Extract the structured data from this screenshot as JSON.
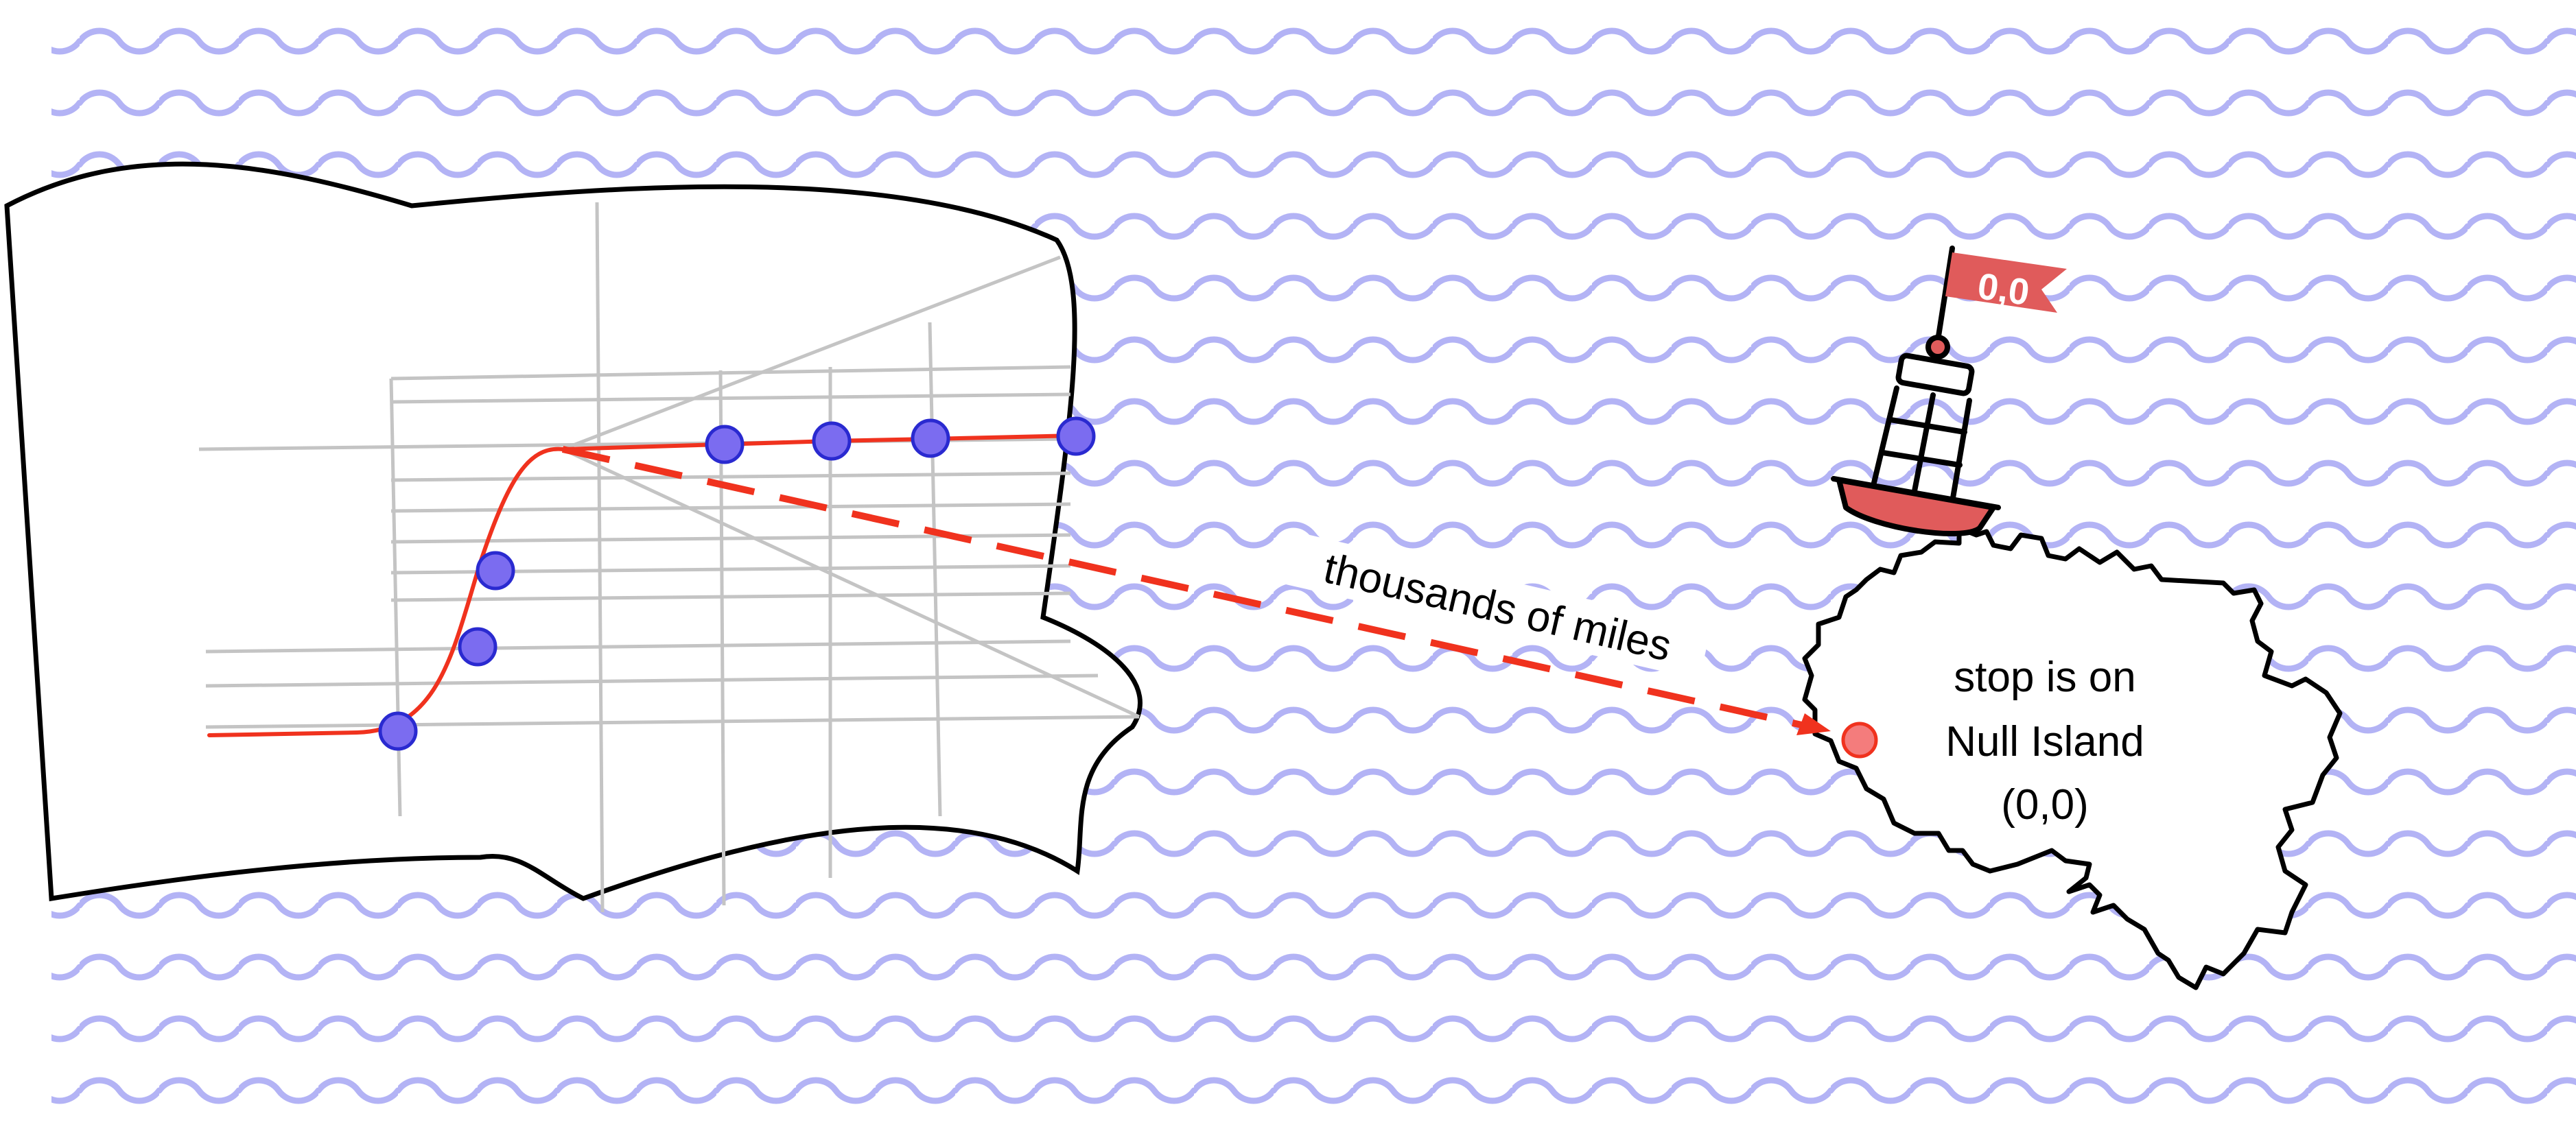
{
  "labels": {
    "distance": "thousands of miles",
    "stop_line_1": "stop is on",
    "stop_line_2": "Null Island",
    "stop_line_3": "(0,0)",
    "flag": "0,0"
  },
  "colors": {
    "water_waves": "#b3b3f5",
    "land_outline": "#000000",
    "streets": "#c4c4c4",
    "route": "#f0321e",
    "stop_marker_fill": "#7b6cf0",
    "stop_marker_stroke": "#2a2ad0",
    "null_stop_fill": "#f47c7c",
    "buoy_red": "#e05b5b"
  },
  "icons": {
    "buoy": "buoy-icon",
    "flag": "flag-icon"
  }
}
